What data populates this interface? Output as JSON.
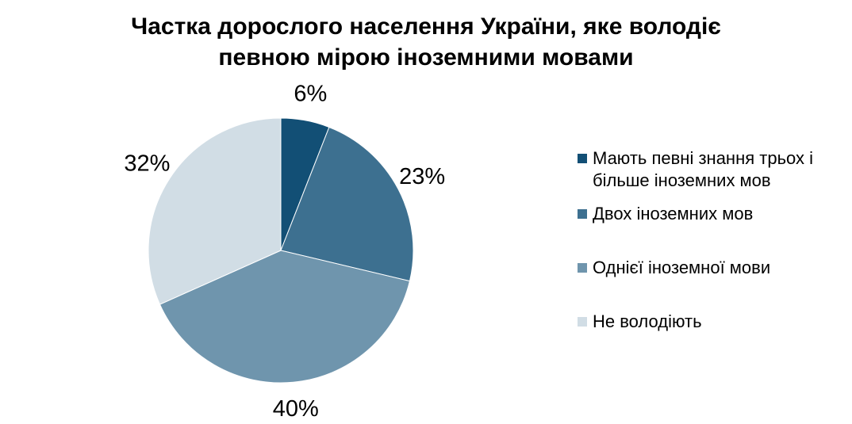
{
  "chart_data": {
    "type": "pie",
    "title": "Частка дорослого населення України, яке володіє певною мірою іноземними мовами",
    "title_lines": [
      "Частка дорослого населення України, яке володіє",
      "певною мірою іноземними мовами"
    ],
    "slices": [
      {
        "label": "Мають певні знання трьох і більше іноземних мов",
        "value": 6,
        "display": "6%",
        "color": "#124f75"
      },
      {
        "label": "Двох іноземних мов",
        "value": 23,
        "display": "23%",
        "color": "#3d7090"
      },
      {
        "label": "Однієї іноземної мови",
        "value": 40,
        "display": "40%",
        "color": "#6f95ad"
      },
      {
        "label": "Не володіють",
        "value": 32,
        "display": "32%",
        "color": "#d1dde5"
      }
    ],
    "legend_placement": "right",
    "start_angle": "12 o'clock",
    "direction": "clockwise"
  }
}
